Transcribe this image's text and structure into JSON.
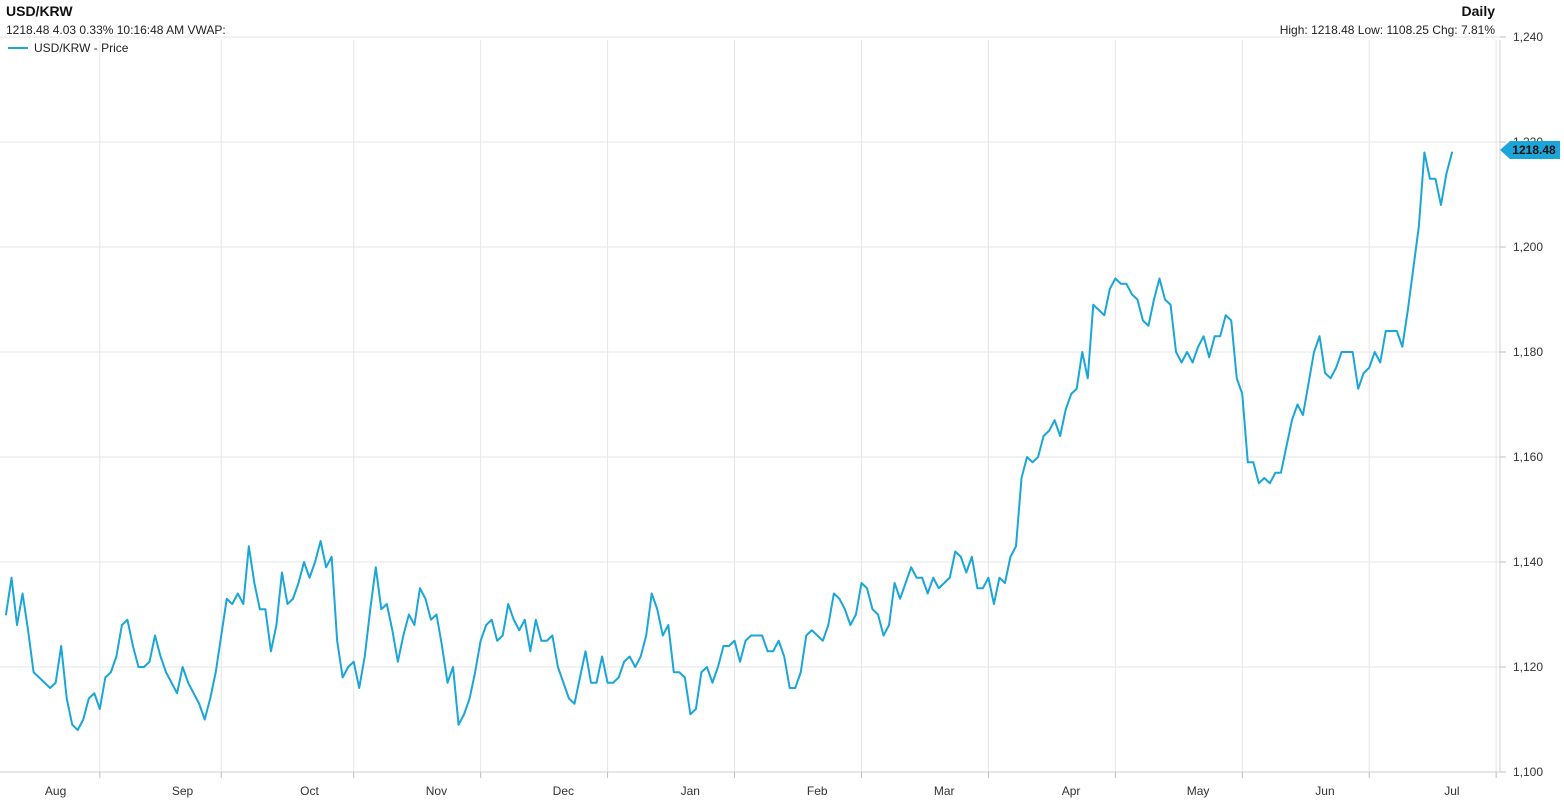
{
  "chart_data": {
    "type": "line",
    "title": "USD/KRW",
    "period_label": "Daily",
    "info_line": "1218.48 4.03 0.33% 10:16:48 AM VWAP:",
    "stats_line": "High: 1218.48 Low: 1108.25 Chg: 7.81%",
    "last_value_label": "1218.48",
    "last_value": 1218.48,
    "ylim": [
      1100,
      1240
    ],
    "y_ticks": [
      1100,
      1120,
      1140,
      1160,
      1180,
      1200,
      1220,
      1240
    ],
    "y_tick_labels": [
      "1,100",
      "1,120",
      "1,140",
      "1,160",
      "1,180",
      "1,200",
      "1,220",
      "1,240"
    ],
    "x_count": 285,
    "month_ticks": [
      {
        "label": "Aug",
        "index": 5
      },
      {
        "label": "Sep",
        "index": 28
      },
      {
        "label": "Oct",
        "index": 51
      },
      {
        "label": "Nov",
        "index": 74
      },
      {
        "label": "Dec",
        "index": 97
      },
      {
        "label": "Jan",
        "index": 120
      },
      {
        "label": "Feb",
        "index": 143
      },
      {
        "label": "Mar",
        "index": 166
      },
      {
        "label": "Apr",
        "index": 189
      },
      {
        "label": "May",
        "index": 212
      },
      {
        "label": "Jun",
        "index": 235
      },
      {
        "label": "Jul",
        "index": 258
      }
    ],
    "month_boundaries": [
      17,
      39,
      63,
      86,
      109,
      132,
      155,
      178,
      201,
      224,
      247,
      270
    ],
    "legend": "USD/KRW - Price",
    "series": [
      {
        "name": "USD/KRW - Price",
        "color": "#1ba6d9",
        "values": [
          1130,
          1137,
          1128,
          1134,
          1127,
          1119,
          1118,
          1117,
          1116,
          1117,
          1124,
          1114,
          1109,
          1108,
          1110,
          1114,
          1115,
          1112,
          1118,
          1119,
          1122,
          1128,
          1129,
          1124,
          1120,
          1120,
          1121,
          1126,
          1122,
          1119,
          1117,
          1115,
          1120,
          1117,
          1115,
          1113,
          1110,
          1114,
          1119,
          1126,
          1133,
          1132,
          1134,
          1132,
          1143,
          1136,
          1131,
          1131,
          1123,
          1128,
          1138,
          1132,
          1133,
          1136,
          1140,
          1137,
          1140,
          1144,
          1139,
          1141,
          1125,
          1118,
          1120,
          1121,
          1116,
          1122,
          1131,
          1139,
          1131,
          1132,
          1127,
          1121,
          1126,
          1130,
          1128,
          1135,
          1133,
          1129,
          1130,
          1124,
          1117,
          1120,
          1109,
          1111,
          1114,
          1119,
          1125,
          1128,
          1129,
          1125,
          1126,
          1132,
          1129,
          1127,
          1129,
          1123,
          1129,
          1125,
          1125,
          1126,
          1120,
          1117,
          1114,
          1113,
          1118,
          1123,
          1117,
          1117,
          1122,
          1117,
          1117,
          1118,
          1121,
          1122,
          1120,
          1122,
          1126,
          1134,
          1131,
          1126,
          1128,
          1119,
          1119,
          1118,
          1111,
          1112,
          1119,
          1120,
          1117,
          1120,
          1124,
          1124,
          1125,
          1121,
          1125,
          1126,
          1126,
          1126,
          1123,
          1123,
          1125,
          1122,
          1116,
          1116,
          1119,
          1126,
          1127,
          1126,
          1125,
          1128,
          1134,
          1133,
          1131,
          1128,
          1130,
          1136,
          1135,
          1131,
          1130,
          1126,
          1128,
          1136,
          1133,
          1136,
          1139,
          1137,
          1137,
          1134,
          1137,
          1135,
          1136,
          1137,
          1142,
          1141,
          1138,
          1141,
          1135,
          1135,
          1137,
          1132,
          1137,
          1136,
          1141,
          1143,
          1156,
          1160,
          1159,
          1160,
          1164,
          1165,
          1167,
          1164,
          1169,
          1172,
          1173,
          1180,
          1175,
          1189,
          1188,
          1187,
          1192,
          1194,
          1193,
          1193,
          1191,
          1190,
          1186,
          1185,
          1190,
          1194,
          1190,
          1189,
          1180,
          1178,
          1180,
          1178,
          1181,
          1183,
          1179,
          1183,
          1183,
          1187,
          1186,
          1175,
          1172,
          1159,
          1159,
          1155,
          1156,
          1155,
          1157,
          1157,
          1162,
          1167,
          1170,
          1168,
          1174,
          1180,
          1183,
          1176,
          1175,
          1177,
          1180,
          1180,
          1180,
          1173,
          1176,
          1177,
          1180,
          1178,
          1184,
          1184,
          1184,
          1181,
          1188,
          1196,
          1204,
          1218,
          1213,
          1213,
          1208,
          1214,
          1218
        ]
      }
    ]
  }
}
